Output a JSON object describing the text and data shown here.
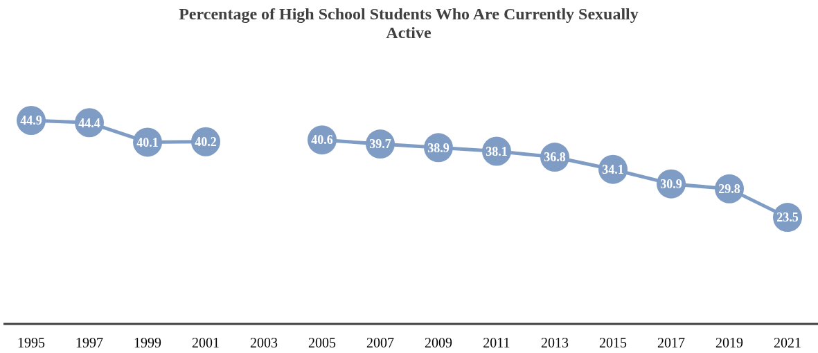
{
  "chart_data": {
    "type": "line",
    "title": "Percentage of High School Students Who Are Currently Sexually Active",
    "categories": [
      "1995",
      "1997",
      "1999",
      "2001",
      "2003",
      "2005",
      "2007",
      "2009",
      "2011",
      "2013",
      "2015",
      "2017",
      "2019",
      "2021"
    ],
    "series": [
      {
        "color": "#7f9cc4",
        "values": [
          44.9,
          44.4,
          40.1,
          40.2,
          null,
          40.6,
          39.7,
          38.9,
          38.1,
          36.8,
          34.1,
          30.9,
          29.8,
          23.5
        ]
      }
    ],
    "data_labels": true,
    "marker": "circle"
  }
}
